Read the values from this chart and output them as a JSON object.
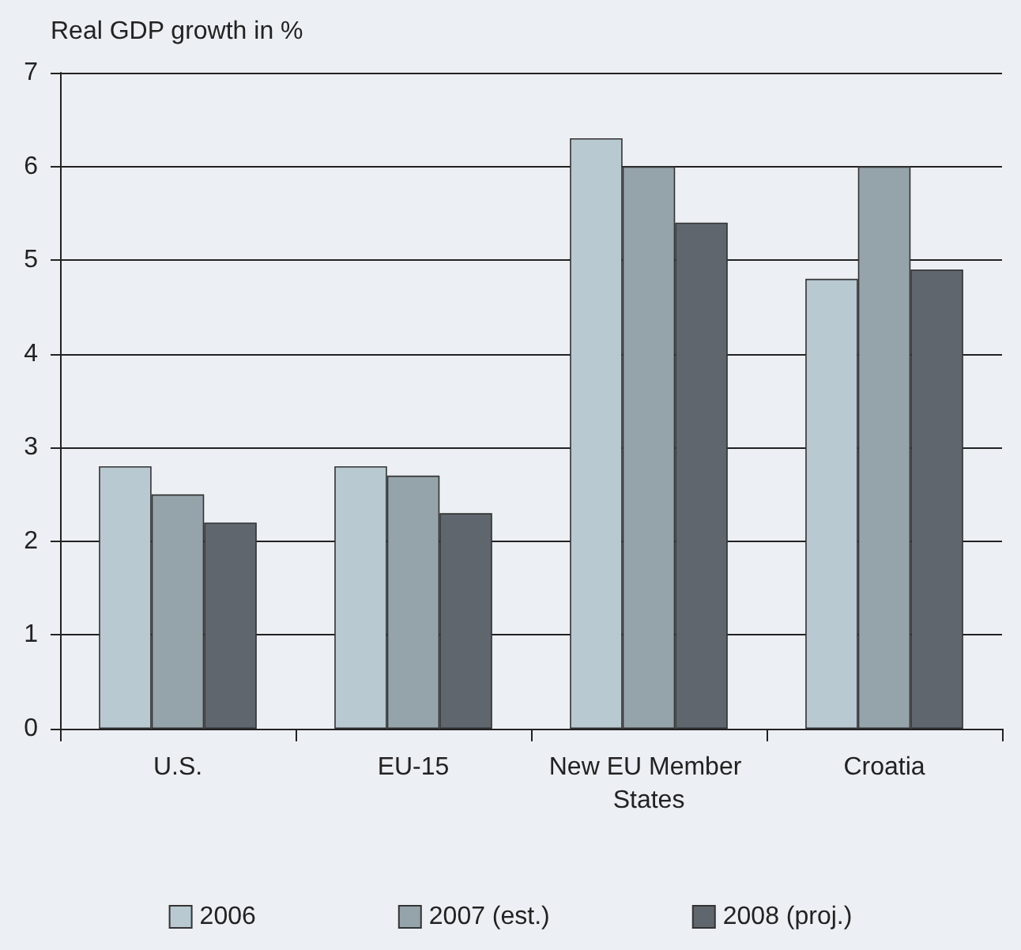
{
  "chart_data": {
    "type": "bar",
    "ylabel": "Real GDP growth in %",
    "categories": [
      "U.S.",
      "EU-15",
      "New EU Member States",
      "Croatia"
    ],
    "series": [
      {
        "name": "2006",
        "color": "#b8c9d1",
        "values": [
          2.8,
          2.8,
          6.3,
          4.8
        ]
      },
      {
        "name": "2007 (est.)",
        "color": "#95a4aa",
        "values": [
          2.5,
          2.7,
          6.0,
          6.0
        ]
      },
      {
        "name": "2008 (proj.)",
        "color": "#5f666d",
        "values": [
          2.2,
          2.3,
          5.4,
          4.9
        ]
      }
    ],
    "ylim": [
      0,
      7
    ],
    "yticks": [
      0,
      1,
      2,
      3,
      4,
      5,
      6,
      7
    ],
    "grid": "y",
    "legend": "bottom"
  }
}
